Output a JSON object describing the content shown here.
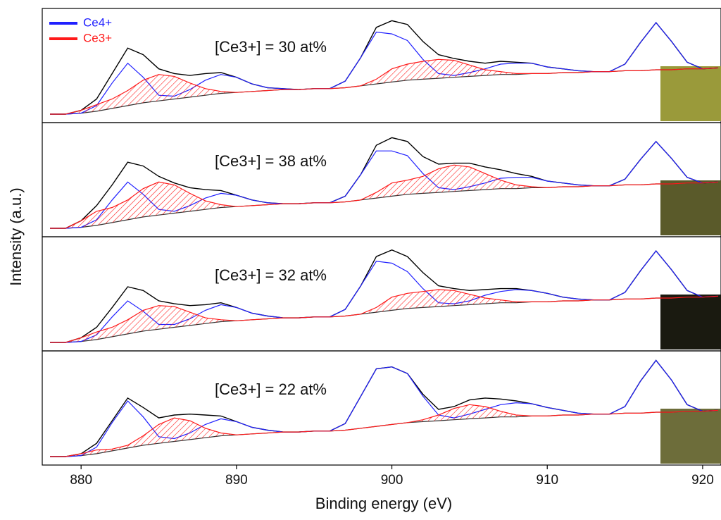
{
  "chart_data": {
    "type": "line",
    "x_label": "Binding energy (eV)",
    "y_label": "Intensity (a.u.)",
    "xlim": [
      877.5,
      921
    ],
    "xticks": [
      880,
      890,
      900,
      910,
      920
    ],
    "ylim": [
      0,
      115
    ],
    "x": [
      878,
      879,
      880,
      881,
      882,
      883,
      884,
      885,
      886,
      887,
      888,
      889,
      890,
      891,
      892,
      893,
      894,
      895,
      896,
      897,
      898,
      899,
      900,
      901,
      902,
      903,
      904,
      905,
      906,
      907,
      908,
      909,
      910,
      911,
      912,
      913,
      914,
      915,
      916,
      917,
      918,
      919,
      920,
      921
    ],
    "panels": [
      {
        "annotation": "[Ce3+] = 30 at%",
        "series": [
          {
            "color": "#000000",
            "values": [
              6,
              6,
              10,
              22,
              49,
              76,
              69,
              54,
              49,
              47,
              49,
              50,
              45,
              38,
              34,
              33,
              32,
              33,
              33,
              41,
              66,
              98,
              105,
              101,
              83,
              69,
              65,
              62,
              60,
              62,
              61,
              60,
              56,
              54,
              52,
              51,
              51,
              59,
              82,
              103,
              83,
              61,
              54,
              55
            ]
          },
          {
            "color": "#333333",
            "values": [
              6,
              6,
              7,
              9,
              12,
              15,
              18,
              20,
              22,
              24,
              26,
              28,
              29,
              30,
              31,
              32,
              32,
              33,
              33,
              34,
              36,
              38,
              40,
              42,
              43,
              44,
              45,
              46,
              47,
              48,
              48,
              49,
              49,
              50,
              50,
              51,
              51,
              52,
              52,
              53,
              53,
              54,
              54,
              55
            ]
          },
          {
            "name": "Ce4+",
            "color": "#2020ff",
            "values": [
              0,
              0,
              0,
              6,
              27,
              45,
              27,
              6,
              3,
              8,
              16,
              20,
              16,
              8,
              3,
              1,
              0,
              0,
              0,
              7,
              30,
              55,
              51,
              42,
              21,
              5,
              2,
              4,
              7,
              11,
              12,
              11,
              7,
              4,
              2,
              0,
              0,
              7,
              30,
              50,
              30,
              7,
              0,
              0
            ]
          },
          {
            "name": "Ce3+",
            "color": "#ff1a1a",
            "values": [
              0,
              0,
              3,
              7,
              10,
              16,
              24,
              28,
              24,
              15,
              7,
              2,
              0,
              0,
              0,
              0,
              0,
              0,
              0,
              0,
              0,
              5,
              14,
              17,
              19,
              20,
              18,
              12,
              6,
              3,
              1,
              0,
              0,
              0,
              0,
              0,
              0,
              0,
              0,
              0,
              0,
              0,
              0,
              0
            ]
          }
        ]
      },
      {
        "annotation": "[Ce3+] = 38 at%",
        "series": [
          {
            "color": "#000000",
            "values": [
              6,
              6,
              14,
              30,
              52,
              76,
              72,
              61,
              54,
              49,
              47,
              46,
              41,
              36,
              33,
              32,
              32,
              33,
              33,
              40,
              63,
              94,
              102,
              98,
              82,
              74,
              75,
              75,
              71,
              68,
              64,
              61,
              56,
              54,
              52,
              51,
              51,
              58,
              79,
              98,
              80,
              60,
              54,
              55
            ]
          },
          {
            "color": "#333333",
            "values": [
              6,
              6,
              7,
              9,
              12,
              15,
              18,
              20,
              22,
              24,
              26,
              28,
              29,
              30,
              31,
              32,
              32,
              33,
              33,
              34,
              36,
              38,
              40,
              42,
              43,
              44,
              45,
              46,
              47,
              48,
              48,
              49,
              49,
              50,
              50,
              51,
              51,
              52,
              52,
              53,
              53,
              54,
              54,
              55
            ]
          },
          {
            "name": "Ce4+",
            "color": "#2020ff",
            "values": [
              0,
              0,
              0,
              6,
              24,
              40,
              24,
              6,
              2,
              6,
              12,
              15,
              12,
              6,
              2,
              0,
              0,
              0,
              0,
              6,
              27,
              50,
              48,
              41,
              21,
              5,
              2,
              4,
              7,
              11,
              12,
              11,
              7,
              4,
              2,
              0,
              0,
              6,
              27,
              45,
              27,
              6,
              0,
              0
            ]
          },
          {
            "name": "Ce3+",
            "color": "#ff1a1a",
            "values": [
              0,
              0,
              7,
              15,
              16,
              21,
              30,
              35,
              30,
              19,
              9,
              3,
              0,
              0,
              0,
              0,
              0,
              0,
              0,
              0,
              0,
              6,
              14,
              15,
              18,
              25,
              28,
              25,
              17,
              9,
              4,
              1,
              0,
              0,
              0,
              0,
              0,
              0,
              0,
              0,
              0,
              0,
              0,
              0
            ]
          }
        ]
      },
      {
        "annotation": "[Ce3+] = 32 at%",
        "series": [
          {
            "color": "#000000",
            "values": [
              6,
              6,
              11,
              22,
              43,
              65,
              61,
              50,
              47,
              45,
              46,
              48,
              43,
              37,
              34,
              32,
              32,
              33,
              33,
              41,
              66,
              97,
              104,
              97,
              80,
              66,
              63,
              61,
              62,
              63,
              63,
              61,
              58,
              54,
              52,
              51,
              51,
              59,
              82,
              103,
              83,
              61,
              54,
              55
            ]
          },
          {
            "color": "#333333",
            "values": [
              6,
              6,
              7,
              9,
              12,
              15,
              18,
              20,
              22,
              24,
              26,
              28,
              29,
              30,
              31,
              32,
              32,
              33,
              33,
              34,
              36,
              38,
              40,
              42,
              43,
              44,
              45,
              46,
              47,
              48,
              48,
              49,
              49,
              50,
              50,
              51,
              51,
              52,
              52,
              53,
              53,
              54,
              54,
              55
            ]
          },
          {
            "name": "Ce4+",
            "color": "#2020ff",
            "values": [
              0,
              0,
              0,
              5,
              21,
              35,
              21,
              5,
              3,
              7,
              14,
              18,
              14,
              7,
              3,
              0,
              0,
              0,
              0,
              7,
              30,
              54,
              50,
              39,
              20,
              4,
              2,
              4,
              9,
              12,
              14,
              12,
              9,
              4,
              2,
              0,
              0,
              7,
              30,
              50,
              30,
              7,
              0,
              0
            ]
          },
          {
            "name": "Ce3+",
            "color": "#ff1a1a",
            "values": [
              0,
              0,
              4,
              8,
              10,
              15,
              22,
              25,
              22,
              14,
              6,
              2,
              0,
              0,
              0,
              0,
              0,
              0,
              0,
              0,
              0,
              5,
              14,
              16,
              17,
              18,
              16,
              11,
              6,
              3,
              1,
              0,
              0,
              0,
              0,
              0,
              0,
              0,
              0,
              0,
              0,
              0,
              0,
              0
            ]
          }
        ]
      },
      {
        "annotation": "[Ce3+] = 22 at%",
        "series": [
          {
            "color": "#000000",
            "values": [
              6,
              6,
              9,
              20,
              44,
              68,
              58,
              47,
              50,
              51,
              50,
              49,
              43,
              37,
              34,
              32,
              32,
              33,
              33,
              41,
              70,
              99,
              101,
              94,
              72,
              56,
              59,
              66,
              68,
              67,
              65,
              62,
              58,
              55,
              52,
              51,
              51,
              59,
              86,
              108,
              87,
              61,
              54,
              55
            ]
          },
          {
            "color": "#333333",
            "values": [
              6,
              6,
              7,
              9,
              12,
              15,
              18,
              20,
              22,
              24,
              26,
              28,
              29,
              30,
              31,
              32,
              32,
              33,
              33,
              34,
              36,
              38,
              40,
              42,
              43,
              44,
              45,
              46,
              47,
              48,
              48,
              49,
              49,
              50,
              50,
              51,
              51,
              52,
              52,
              53,
              53,
              54,
              54,
              55
            ]
          },
          {
            "name": "Ce4+",
            "color": "#2020ff",
            "values": [
              0,
              0,
              0,
              7,
              30,
              50,
              30,
              7,
              3,
              7,
              14,
              18,
              14,
              7,
              3,
              0,
              0,
              0,
              0,
              7,
              34,
              61,
              61,
              52,
              27,
              6,
              2,
              5,
              9,
              13,
              15,
              13,
              9,
              5,
              2,
              0,
              0,
              7,
              34,
              55,
              34,
              7,
              0,
              0
            ]
          },
          {
            "name": "Ce3+",
            "color": "#ff1a1a",
            "values": [
              0,
              0,
              2,
              4,
              2,
              3,
              10,
              20,
              25,
              20,
              10,
              3,
              0,
              0,
              0,
              0,
              0,
              0,
              0,
              0,
              0,
              0,
              0,
              0,
              2,
              6,
              12,
              15,
              12,
              6,
              2,
              0,
              0,
              0,
              0,
              0,
              0,
              0,
              0,
              0,
              0,
              0,
              0,
              0
            ]
          }
        ]
      }
    ]
  }
}
